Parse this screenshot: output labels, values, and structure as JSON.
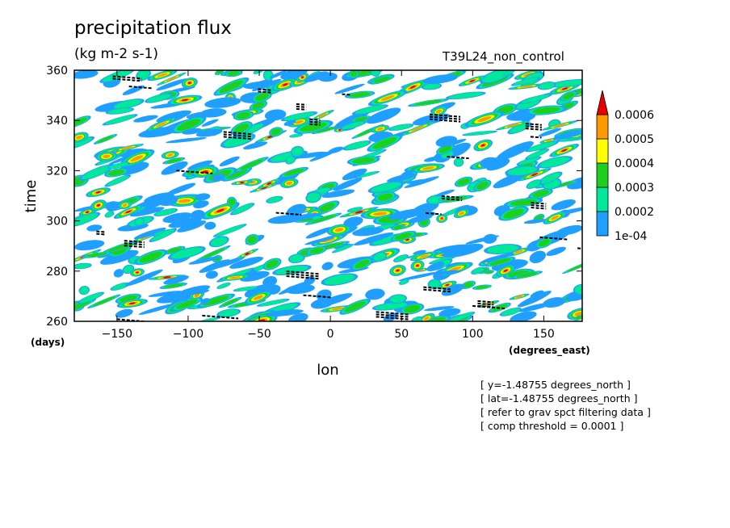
{
  "title": "precipitation flux",
  "units": "(kg m-2 s-1)",
  "dataset": "T39L24_non_control",
  "notes": [
    "[ y=-1.48755 degrees_north ]",
    "[ lat=-1.48755 degrees_north ]",
    "[ refer to grav spct filtering data ]",
    "[ comp threshold = 0.0001 ]"
  ],
  "chart_data": {
    "type": "heatmap",
    "title": "precipitation flux",
    "subtitle": "(kg m-2 s-1)",
    "xlabel": "lon",
    "ylabel": "time",
    "x_unit_label": "(degrees_east)",
    "y_unit_label": "(days)",
    "xlim": [
      -180,
      177
    ],
    "ylim": [
      260,
      360
    ],
    "x_ticks": [
      -150,
      -100,
      -50,
      0,
      50,
      100,
      150
    ],
    "y_ticks": [
      260,
      280,
      300,
      320,
      340,
      360
    ],
    "x_tick_labels": [
      "−150",
      "−100",
      "−50",
      "0",
      "50",
      "100",
      "150"
    ],
    "y_tick_labels": [
      "260",
      "280",
      "300",
      "320",
      "340",
      "360"
    ],
    "legend": {
      "placement": "right",
      "levels": [
        0.0001,
        0.0002,
        0.0003,
        0.0004,
        0.0005,
        0.0006
      ],
      "labels": [
        "1e-04",
        "0.0002",
        "0.0003",
        "0.0004",
        "0.0005",
        "0.0006"
      ],
      "colors": [
        "#1f9fff",
        "#00e89a",
        "#1ed01e",
        "#ffff00",
        "#ff9900",
        "#e80000"
      ]
    },
    "threshold_marks_color": "#000000"
  }
}
